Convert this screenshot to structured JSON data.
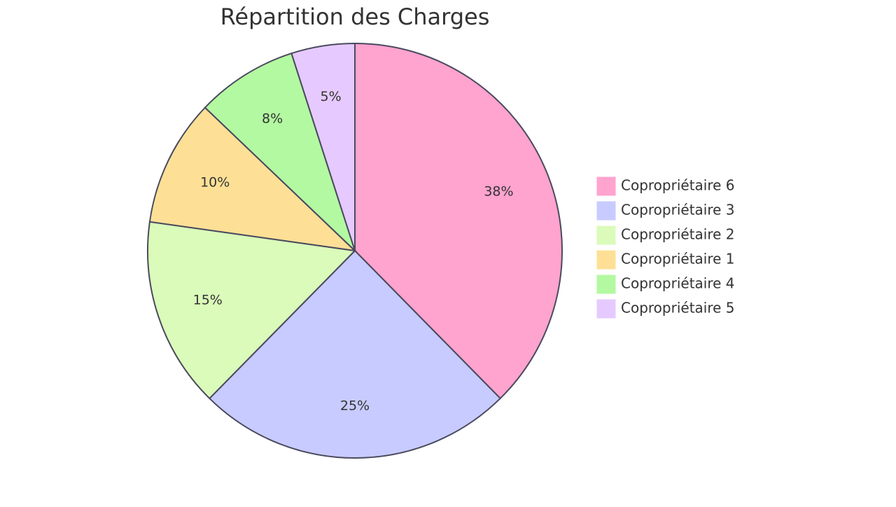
{
  "chart_data": {
    "type": "pie",
    "title": "Répartition des Charges",
    "categories": [
      "Copropriétaire 6",
      "Copropriétaire 3",
      "Copropriétaire 2",
      "Copropriétaire 1",
      "Copropriétaire 4",
      "Copropriétaire 5"
    ],
    "values": [
      38,
      25,
      15,
      10,
      8,
      5
    ],
    "value_labels": [
      "38%",
      "25%",
      "15%",
      "10%",
      "8%",
      "5%"
    ],
    "colors": [
      "#ffa3cf",
      "#c8cbff",
      "#dafbb9",
      "#fde096",
      "#b3f9a1",
      "#e6caff"
    ]
  }
}
